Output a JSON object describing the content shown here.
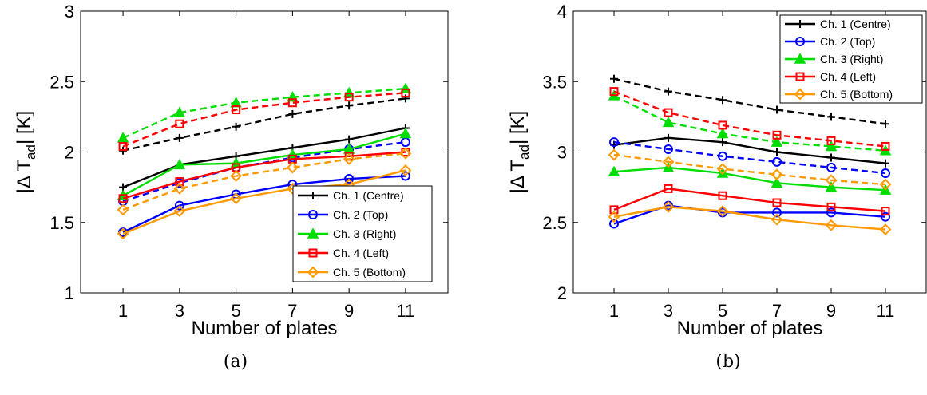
{
  "chart_data": [
    {
      "type": "line",
      "caption": "(a)",
      "xlabel": "Number of plates",
      "ylabel_main": "|Δ T",
      "ylabel_sub": "ad",
      "ylabel_tail": "| [K]",
      "x": [
        1,
        3,
        5,
        7,
        9,
        11
      ],
      "xlim": [
        -0.5,
        12.5
      ],
      "ylim": [
        1,
        3
      ],
      "yticks": [
        "1",
        "1.5",
        "2",
        "2.5",
        "3"
      ],
      "xticks": [
        "1",
        "3",
        "5",
        "7",
        "9",
        "11"
      ],
      "legend_position": "bottom-right",
      "grid": false,
      "series": [
        {
          "name": "Ch. 1 (Centre)",
          "color": "#000000",
          "marker": "plus",
          "solid": [
            1.75,
            1.91,
            1.97,
            2.03,
            2.09,
            2.17
          ],
          "dashed": [
            2.01,
            2.1,
            2.18,
            2.27,
            2.33,
            2.38
          ]
        },
        {
          "name": "Ch. 2 (Top)",
          "color": "#0000ff",
          "marker": "circle",
          "solid": [
            1.43,
            1.62,
            1.7,
            1.77,
            1.81,
            1.83
          ],
          "dashed": [
            1.65,
            1.78,
            1.89,
            1.96,
            2.02,
            2.07
          ]
        },
        {
          "name": "Ch. 3 (Right)",
          "color": "#00dd00",
          "marker": "triangle",
          "solid": [
            1.69,
            1.91,
            1.92,
            1.98,
            2.02,
            2.13
          ],
          "dashed": [
            2.1,
            2.28,
            2.35,
            2.39,
            2.42,
            2.45
          ]
        },
        {
          "name": "Ch. 4 (Left)",
          "color": "#ff0000",
          "marker": "square",
          "solid": [
            1.67,
            1.79,
            1.89,
            1.95,
            1.97,
            2.0
          ],
          "dashed": [
            2.04,
            2.2,
            2.3,
            2.35,
            2.39,
            2.42
          ]
        },
        {
          "name": "Ch. 5 (Bottom)",
          "color": "#ff9900",
          "marker": "diamond",
          "solid": [
            1.42,
            1.58,
            1.67,
            1.74,
            1.77,
            1.87
          ],
          "dashed": [
            1.59,
            1.74,
            1.83,
            1.89,
            1.95,
            1.99
          ]
        }
      ]
    },
    {
      "type": "line",
      "caption": "(b)",
      "xlabel": "Number of plates",
      "ylabel_main": "|Δ T",
      "ylabel_sub": "ad",
      "ylabel_tail": "| [K]",
      "x": [
        1,
        3,
        5,
        7,
        9,
        11
      ],
      "xlim": [
        -0.5,
        12.5
      ],
      "ylim": [
        2,
        4
      ],
      "yticks": [
        "2",
        "2.5",
        "3",
        "3.5",
        "4"
      ],
      "xticks": [
        "1",
        "3",
        "5",
        "7",
        "9",
        "11"
      ],
      "legend_position": "top-right",
      "grid": false,
      "series": [
        {
          "name": "Ch. 1 (Centre)",
          "color": "#000000",
          "marker": "plus",
          "solid": [
            3.05,
            3.1,
            3.07,
            3.0,
            2.96,
            2.92
          ],
          "dashed": [
            3.52,
            3.43,
            3.37,
            3.3,
            3.25,
            3.2
          ]
        },
        {
          "name": "Ch. 2 (Top)",
          "color": "#0000ff",
          "marker": "circle",
          "solid": [
            2.49,
            2.62,
            2.57,
            2.57,
            2.57,
            2.54
          ],
          "dashed": [
            3.07,
            3.02,
            2.97,
            2.93,
            2.89,
            2.85
          ]
        },
        {
          "name": "Ch. 3 (Right)",
          "color": "#00dd00",
          "marker": "triangle",
          "solid": [
            2.86,
            2.89,
            2.85,
            2.78,
            2.75,
            2.73
          ],
          "dashed": [
            3.4,
            3.21,
            3.13,
            3.07,
            3.04,
            3.01
          ]
        },
        {
          "name": "Ch. 4 (Left)",
          "color": "#ff0000",
          "marker": "square",
          "solid": [
            2.59,
            2.74,
            2.69,
            2.64,
            2.61,
            2.58
          ],
          "dashed": [
            3.43,
            3.28,
            3.19,
            3.12,
            3.08,
            3.04
          ]
        },
        {
          "name": "Ch. 5 (Bottom)",
          "color": "#ff9900",
          "marker": "diamond",
          "solid": [
            2.54,
            2.61,
            2.58,
            2.52,
            2.48,
            2.45
          ],
          "dashed": [
            2.98,
            2.93,
            2.88,
            2.84,
            2.8,
            2.77
          ]
        }
      ]
    }
  ]
}
